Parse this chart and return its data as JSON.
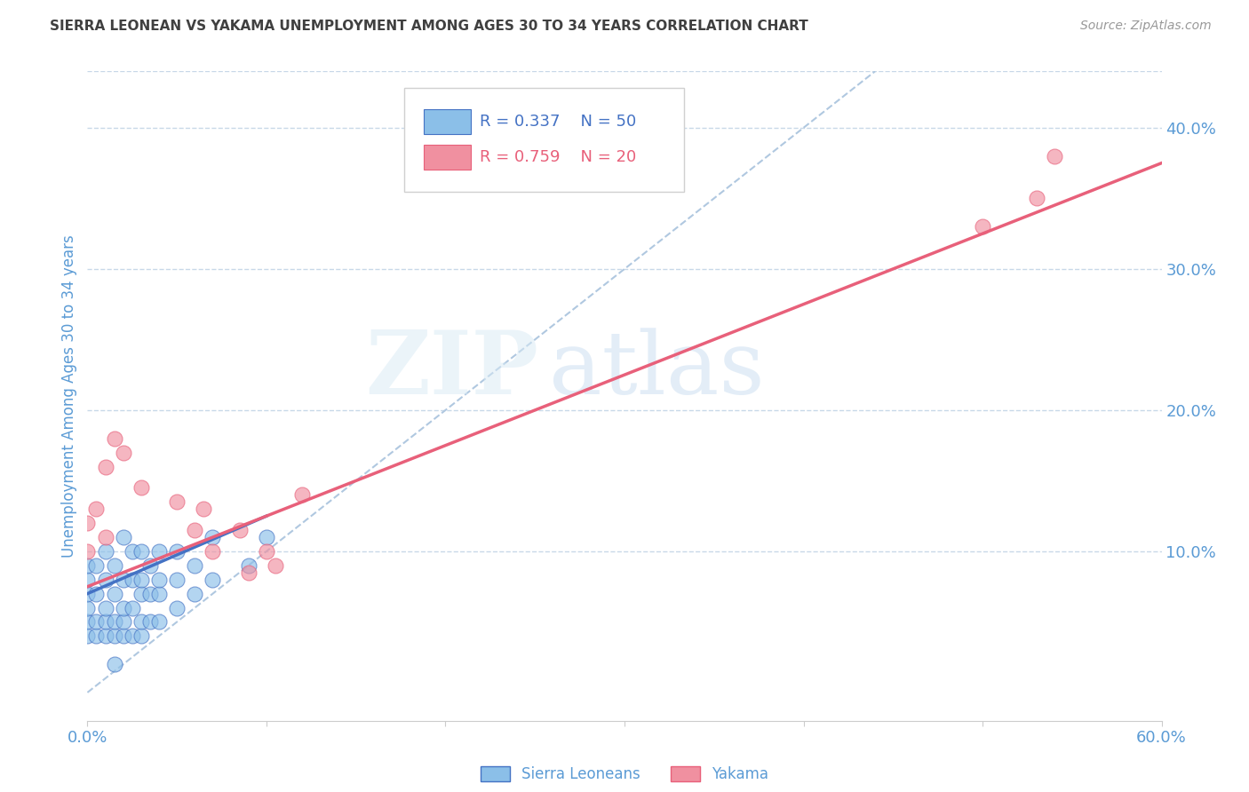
{
  "title": "SIERRA LEONEAN VS YAKAMA UNEMPLOYMENT AMONG AGES 30 TO 34 YEARS CORRELATION CHART",
  "source": "Source: ZipAtlas.com",
  "ylabel": "Unemployment Among Ages 30 to 34 years",
  "xmin": 0.0,
  "xmax": 0.6,
  "ymin": -0.02,
  "ymax": 0.44,
  "xtick_positions": [
    0.0,
    0.1,
    0.2,
    0.3,
    0.4,
    0.5,
    0.6
  ],
  "xtick_labels": [
    "0.0%",
    "",
    "",
    "",
    "",
    "",
    "60.0%"
  ],
  "yticks_right": [
    0.1,
    0.2,
    0.3,
    0.4
  ],
  "blue_R": 0.337,
  "blue_N": 50,
  "pink_R": 0.759,
  "pink_N": 20,
  "legend_label_blue": "Sierra Leoneans",
  "legend_label_pink": "Yakama",
  "watermark_zip": "ZIP",
  "watermark_atlas": "atlas",
  "blue_color": "#8BBFE8",
  "pink_color": "#F090A0",
  "blue_line_color": "#4472C4",
  "pink_line_color": "#E8607A",
  "dashed_line_color": "#B0C8E0",
  "title_color": "#404040",
  "axis_label_color": "#5B9BD5",
  "tick_color": "#5B9BD5",
  "grid_color": "#C8D8E8",
  "blue_scatter_x": [
    0.0,
    0.0,
    0.0,
    0.0,
    0.0,
    0.0,
    0.005,
    0.005,
    0.005,
    0.005,
    0.01,
    0.01,
    0.01,
    0.01,
    0.01,
    0.015,
    0.015,
    0.015,
    0.015,
    0.02,
    0.02,
    0.02,
    0.02,
    0.02,
    0.025,
    0.025,
    0.025,
    0.025,
    0.03,
    0.03,
    0.03,
    0.03,
    0.03,
    0.035,
    0.035,
    0.035,
    0.04,
    0.04,
    0.04,
    0.04,
    0.05,
    0.05,
    0.05,
    0.06,
    0.06,
    0.07,
    0.07,
    0.09,
    0.1,
    0.015
  ],
  "blue_scatter_y": [
    0.04,
    0.05,
    0.06,
    0.07,
    0.08,
    0.09,
    0.04,
    0.05,
    0.07,
    0.09,
    0.04,
    0.05,
    0.06,
    0.08,
    0.1,
    0.04,
    0.05,
    0.07,
    0.09,
    0.04,
    0.05,
    0.06,
    0.08,
    0.11,
    0.04,
    0.06,
    0.08,
    0.1,
    0.04,
    0.05,
    0.07,
    0.08,
    0.1,
    0.05,
    0.07,
    0.09,
    0.05,
    0.07,
    0.08,
    0.1,
    0.06,
    0.08,
    0.1,
    0.07,
    0.09,
    0.08,
    0.11,
    0.09,
    0.11,
    0.02
  ],
  "pink_scatter_x": [
    0.0,
    0.0,
    0.005,
    0.01,
    0.01,
    0.015,
    0.02,
    0.03,
    0.05,
    0.06,
    0.065,
    0.07,
    0.085,
    0.09,
    0.1,
    0.105,
    0.12,
    0.5,
    0.53,
    0.54
  ],
  "pink_scatter_y": [
    0.1,
    0.12,
    0.13,
    0.11,
    0.16,
    0.18,
    0.17,
    0.145,
    0.135,
    0.115,
    0.13,
    0.1,
    0.115,
    0.085,
    0.1,
    0.09,
    0.14,
    0.33,
    0.35,
    0.38
  ],
  "blue_line_x": [
    0.0,
    0.1
  ],
  "blue_line_y": [
    0.07,
    0.125
  ],
  "pink_line_x": [
    0.0,
    0.6
  ],
  "pink_line_y": [
    0.075,
    0.375
  ],
  "dashed_line_x": [
    0.0,
    0.44
  ],
  "dashed_line_y": [
    0.0,
    0.44
  ]
}
